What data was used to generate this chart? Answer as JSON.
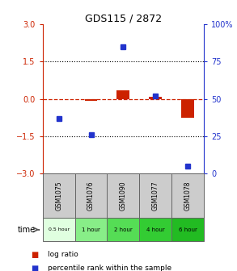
{
  "title": "GDS115 / 2872",
  "samples": [
    "GSM1075",
    "GSM1076",
    "GSM1090",
    "GSM1077",
    "GSM1078"
  ],
  "time_labels": [
    "0.5 hour",
    "1 hour",
    "2 hour",
    "4 hour",
    "6 hour"
  ],
  "log_ratios": [
    0.0,
    -0.07,
    0.35,
    0.07,
    -0.75
  ],
  "percentile_ranks": [
    37,
    26,
    85,
    52,
    5
  ],
  "bar_color_red": "#cc2200",
  "bar_color_blue": "#2233cc",
  "ylim_left": [
    -3,
    3
  ],
  "ylim_right": [
    0,
    100
  ],
  "yticks_left": [
    -3,
    -1.5,
    0,
    1.5,
    3
  ],
  "yticks_right": [
    0,
    25,
    50,
    75,
    100
  ],
  "sample_bg_color": "#cccccc",
  "sample_border_color": "#666666",
  "time_row_colors": [
    "#e0ffe0",
    "#88ee88",
    "#55dd55",
    "#33cc33",
    "#22bb22"
  ],
  "legend_red_label": "log ratio",
  "legend_blue_label": "percentile rank within the sample",
  "bar_width": 0.4,
  "zero_line_color": "#cc2200",
  "dotted_line_color": "#000000",
  "title_fontsize": 9
}
